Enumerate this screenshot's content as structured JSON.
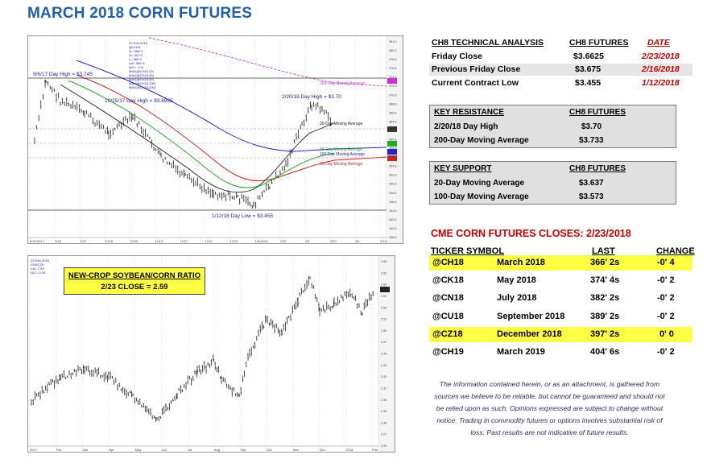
{
  "title": "MARCH 2018 CORN FUTURES",
  "chart1": {
    "annotations": {
      "high_0906": "9/6/17 Day High = $3.745",
      "high_1025": "10/25/17 Day High = $3.6925",
      "high_0220": "2/20/18 Day High = $3.70",
      "low_0112": "1/12/18 Day Low = $3.455",
      "ma200": "200-Day Moving Average",
      "ma20": "20-Day Moving Average",
      "ma35": "35-Day Moving Average",
      "ma100": "100-Day Moving Average",
      "ma50": "50-Day Moving Average"
    },
    "legend_lines": [
      "22-Feb-2018",
      "@CH18",
      "O= 366^4",
      "H= 367^0",
      "L= 366^2",
      "Lst= 366^4",
      "N/C= -0^6",
      "MAV(@CH18,20)",
      "MAV(@CH18,35)",
      "MAV(@CH18,50)",
      "MAV(@CH18,100)",
      "MAV(@CH18,200)"
    ],
    "y_ticks": [
      "381.0",
      "380.0",
      "378.6",
      "376.6",
      "374.6",
      "372.6",
      "370.6",
      "368.6",
      "366.6",
      "364.6",
      "362.6",
      "360.6",
      "358.6",
      "356.6",
      "354.6",
      "352.6",
      "350.6",
      "348.6",
      "346.6",
      "344.6",
      "342.6",
      "340.6",
      "338.6"
    ],
    "x_ticks": [
      "8/31/2017",
      "9/18",
      "10/2",
      "10/16",
      "10/30",
      "11/13",
      "11/27",
      "12/11",
      "12/26",
      "1/8/2018",
      "1/22",
      "2/5",
      "2/20",
      "3/5",
      "3/19"
    ]
  },
  "chart2": {
    "label_line1": "NEW-CROP SOYBEAN/CORN RATIO",
    "label_line2": "2/23 CLOSE = 2.59",
    "legend_lines": [
      "23-Feb-2018",
      "SX8/CZ8",
      "Lst= 2.59",
      "N/C= 0.00"
    ],
    "y_ticks": [
      "2.65",
      "2.62",
      "2.60",
      "2.57",
      "2.55",
      "2.52",
      "2.50",
      "2.47",
      "2.45",
      "2.42",
      "2.40",
      "2.37",
      "2.35",
      "2.32",
      "2.30",
      "2.27",
      "2.25"
    ],
    "x_ticks": [
      "2017",
      "Feb",
      "Mar",
      "Apr",
      "May",
      "Jun",
      "Jul",
      "Aug",
      "Sep",
      "Oct",
      "Nov",
      "Dec",
      "2018",
      "Feb"
    ]
  },
  "technical": {
    "header": "CH8 TECHNICAL ANALYSIS",
    "col_futures": "CH8 FUTURES",
    "col_date": "DATE",
    "rows": [
      {
        "label": "Friday Close",
        "value": "$3.6625",
        "date": "2/23/2018"
      },
      {
        "label": "Previous Friday Close",
        "value": "$3.675",
        "date": "2/16/2018"
      },
      {
        "label": "Current Contract Low",
        "value": "$3.455",
        "date": "1/12/2018"
      }
    ]
  },
  "resistance": {
    "header": "KEY RESISTANCE",
    "col": "CH8 FUTURES",
    "rows": [
      {
        "label": "2/20/18 Day High",
        "value": "$3.70"
      },
      {
        "label": "200-Day Moving Average",
        "value": "$3.733"
      }
    ]
  },
  "support": {
    "header": "KEY SUPPORT",
    "col": "CH8 FUTURES",
    "rows": [
      {
        "label": "20-Day Moving Average",
        "value": "$3.637"
      },
      {
        "label": "100-Day Moving Average",
        "value": "$3.573"
      }
    ]
  },
  "closes": {
    "title": "CME CORN FUTURES CLOSES:  2/23/2018",
    "hdr_ticker": "TICKER SYMBOL",
    "hdr_last": "LAST",
    "hdr_change": "CHANGE",
    "rows": [
      {
        "ticker": "@CH18",
        "month": "March 2018",
        "last": "366' 2s",
        "change": "-0' 4"
      },
      {
        "ticker": "@CK18",
        "month": "May 2018",
        "last": "374' 4s",
        "change": "-0' 2"
      },
      {
        "ticker": "@CN18",
        "month": "July 2018",
        "last": "382' 2s",
        "change": "-0' 2"
      },
      {
        "ticker": "@CU18",
        "month": "September 2018",
        "last": "389' 2s",
        "change": "-0' 2"
      },
      {
        "ticker": "@CZ18",
        "month": "December 2018",
        "last": "397' 2s",
        "change": "0' 0"
      },
      {
        "ticker": "@CH19",
        "month": "March 2019",
        "last": "404' 6s",
        "change": "-0' 2"
      }
    ]
  },
  "disclaimer": "The information contained herein, or as an attachment, is gathered from sources we believe to be reliable, but cannot be guaranteed and should not be relied upon as such. Opinions expressed are subject to change without notice. Trading in commodity futures or options involves substantial risk of loss. Past results are not indicative of future results."
}
